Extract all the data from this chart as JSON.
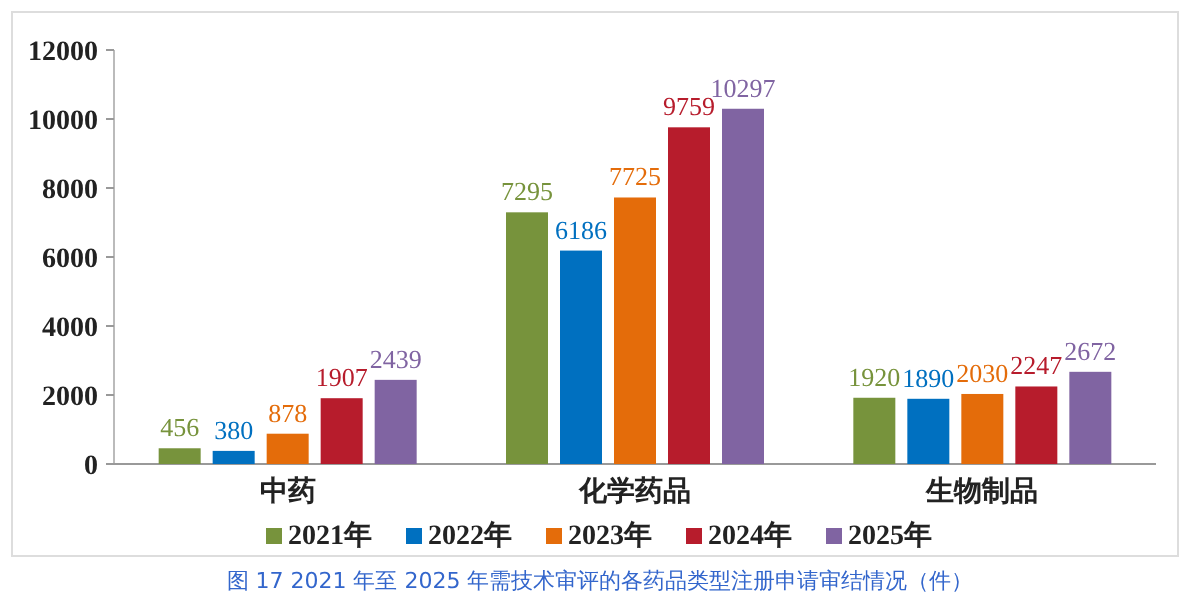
{
  "chart_data": {
    "type": "bar",
    "categories": [
      "中药",
      "化学药品",
      "生物制品"
    ],
    "series": [
      {
        "name": "2021年",
        "color": "#77933c",
        "values": [
          456,
          7295,
          1920
        ]
      },
      {
        "name": "2022年",
        "color": "#0070c0",
        "values": [
          380,
          6186,
          1890
        ]
      },
      {
        "name": "2023年",
        "color": "#e46c0a",
        "values": [
          878,
          7725,
          2030
        ]
      },
      {
        "name": "2024年",
        "color": "#b71c2c",
        "values": [
          1907,
          9759,
          2247
        ]
      },
      {
        "name": "2025年",
        "color": "#8064a2",
        "values": [
          2439,
          10297,
          2672
        ]
      }
    ],
    "ylim": [
      0,
      12000
    ],
    "yticks": [
      0,
      2000,
      4000,
      6000,
      8000,
      10000,
      12000
    ],
    "data_labels": true,
    "legend": "bottom",
    "grid": false,
    "annotations": [
      "图 17 2021 年至 2025 年需技术审评的各药品类型注册申请审结情况（件）"
    ]
  }
}
